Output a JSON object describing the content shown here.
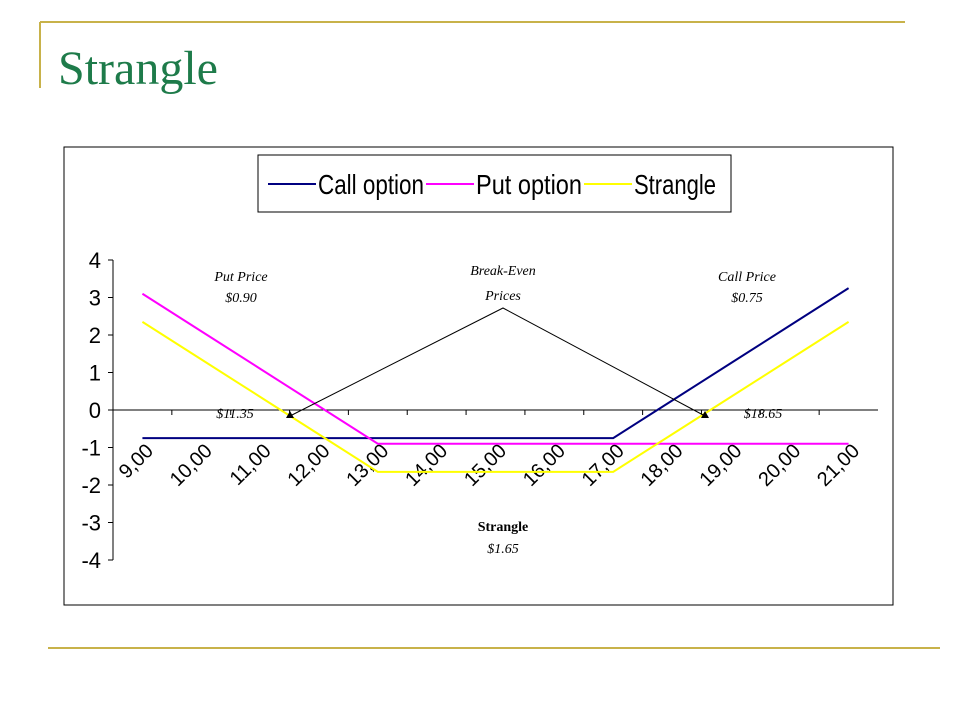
{
  "chart_data": {
    "type": "line",
    "title": "Strangle",
    "categories": [
      "9,00",
      "10,00",
      "11,00",
      "12,00",
      "13,00",
      "14,00",
      "15,00",
      "16,00",
      "17,00",
      "18,00",
      "19,00",
      "20,00",
      "21,00"
    ],
    "series": [
      {
        "name": "Call option",
        "color": "#000080",
        "values": [
          -0.75,
          -0.75,
          -0.75,
          -0.75,
          -0.75,
          -0.75,
          -0.75,
          -0.75,
          -0.75,
          0.25,
          1.25,
          2.25,
          3.25
        ]
      },
      {
        "name": "Put option",
        "color": "#ff00ff",
        "values": [
          3.1,
          2.1,
          1.1,
          0.1,
          -0.9,
          -0.9,
          -0.9,
          -0.9,
          -0.9,
          -0.9,
          -0.9,
          -0.9,
          -0.9
        ]
      },
      {
        "name": "Strangle",
        "color": "#ffff00",
        "values": [
          2.35,
          1.35,
          0.35,
          -0.65,
          -1.65,
          -1.65,
          -1.65,
          -1.65,
          -1.65,
          -0.65,
          0.35,
          1.35,
          2.35
        ]
      }
    ],
    "ylim": [
      -4,
      4
    ],
    "yticks": [
      -4,
      -3,
      -2,
      -1,
      0,
      1,
      2,
      3,
      4
    ],
    "annotations": [
      "Put Price",
      "$0.90",
      "Break-Even",
      "Prices",
      "Call Price",
      "$0.75",
      "$11.35",
      "$18.65",
      "Strangle",
      "$1.65"
    ]
  }
}
